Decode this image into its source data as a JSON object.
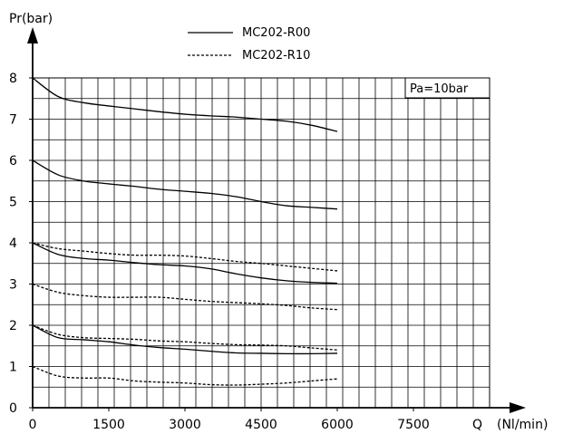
{
  "chart_data": {
    "type": "line",
    "title": "",
    "xlabel": "(Nl/min)",
    "x_symbol": "Q",
    "ylabel": "Pr(bar)",
    "xlim": [
      0,
      9000
    ],
    "ylim": [
      0,
      8
    ],
    "x_ticks": [
      "0",
      "1500",
      "3000",
      "4500",
      "6000",
      "7500"
    ],
    "y_ticks": [
      "0",
      "1",
      "2",
      "3",
      "4",
      "5",
      "6",
      "7",
      "8"
    ],
    "grid": true,
    "legend_position": "top-center",
    "annotation": "Pa=10bar",
    "legend": [
      {
        "name": "MC202-R00",
        "style": "solid"
      },
      {
        "name": "MC202-R10",
        "style": "dotted"
      }
    ],
    "series": [
      {
        "name": "MC202-R00",
        "style": "solid",
        "x": [
          0,
          500,
          1000,
          1500,
          2000,
          2500,
          3000,
          3500,
          4000,
          4500,
          5000,
          5500,
          6000
        ],
        "y": [
          8,
          7.55,
          7.4,
          7.32,
          7.25,
          7.18,
          7.12,
          7.08,
          7.05,
          7.0,
          6.95,
          6.85,
          6.7
        ]
      },
      {
        "name": "MC202-R00",
        "style": "solid",
        "x": [
          0,
          500,
          1000,
          1500,
          2000,
          2500,
          3000,
          3500,
          4000,
          4500,
          5000,
          5500,
          6000
        ],
        "y": [
          6,
          5.65,
          5.5,
          5.43,
          5.37,
          5.3,
          5.25,
          5.2,
          5.12,
          5.0,
          4.9,
          4.86,
          4.82
        ]
      },
      {
        "name": "MC202-R00",
        "style": "solid",
        "x": [
          0,
          500,
          1000,
          1500,
          2000,
          2500,
          3000,
          3500,
          4000,
          4500,
          5000,
          5500,
          6000
        ],
        "y": [
          4,
          3.72,
          3.62,
          3.58,
          3.52,
          3.47,
          3.44,
          3.37,
          3.25,
          3.15,
          3.08,
          3.04,
          3.02
        ]
      },
      {
        "name": "MC202-R00",
        "style": "solid",
        "x": [
          0,
          500,
          1000,
          1500,
          2000,
          2500,
          3000,
          3500,
          4000,
          4500,
          5000,
          5500,
          6000
        ],
        "y": [
          2,
          1.7,
          1.65,
          1.6,
          1.52,
          1.46,
          1.42,
          1.37,
          1.33,
          1.32,
          1.31,
          1.31,
          1.32
        ]
      },
      {
        "name": "MC202-R10",
        "style": "dotted",
        "x": [
          0,
          500,
          1000,
          1500,
          2000,
          2500,
          3000,
          3500,
          4000,
          4500,
          5000,
          5500,
          6000
        ],
        "y": [
          4,
          3.86,
          3.8,
          3.74,
          3.7,
          3.7,
          3.68,
          3.62,
          3.55,
          3.5,
          3.44,
          3.38,
          3.32
        ]
      },
      {
        "name": "MC202-R10",
        "style": "dotted",
        "x": [
          0,
          500,
          1000,
          1500,
          2000,
          2500,
          3000,
          3500,
          4000,
          4500,
          5000,
          5500,
          6000
        ],
        "y": [
          3,
          2.8,
          2.72,
          2.68,
          2.68,
          2.68,
          2.63,
          2.58,
          2.55,
          2.52,
          2.48,
          2.42,
          2.38
        ]
      },
      {
        "name": "MC202-R10",
        "style": "dotted",
        "x": [
          0,
          500,
          1000,
          1500,
          2000,
          2500,
          3000,
          3500,
          4000,
          4500,
          5000,
          5500,
          6000
        ],
        "y": [
          2,
          1.78,
          1.7,
          1.68,
          1.66,
          1.62,
          1.6,
          1.56,
          1.53,
          1.52,
          1.5,
          1.45,
          1.4
        ]
      },
      {
        "name": "MC202-R10",
        "style": "dotted",
        "x": [
          0,
          500,
          1000,
          1500,
          2000,
          2500,
          3000,
          3500,
          4000,
          4500,
          5000,
          5500,
          6000
        ],
        "y": [
          1,
          0.77,
          0.72,
          0.72,
          0.65,
          0.62,
          0.6,
          0.56,
          0.55,
          0.57,
          0.6,
          0.65,
          0.7
        ]
      }
    ],
    "colors": {
      "line": "#000000",
      "grid": "#000000",
      "background": "#ffffff"
    }
  }
}
